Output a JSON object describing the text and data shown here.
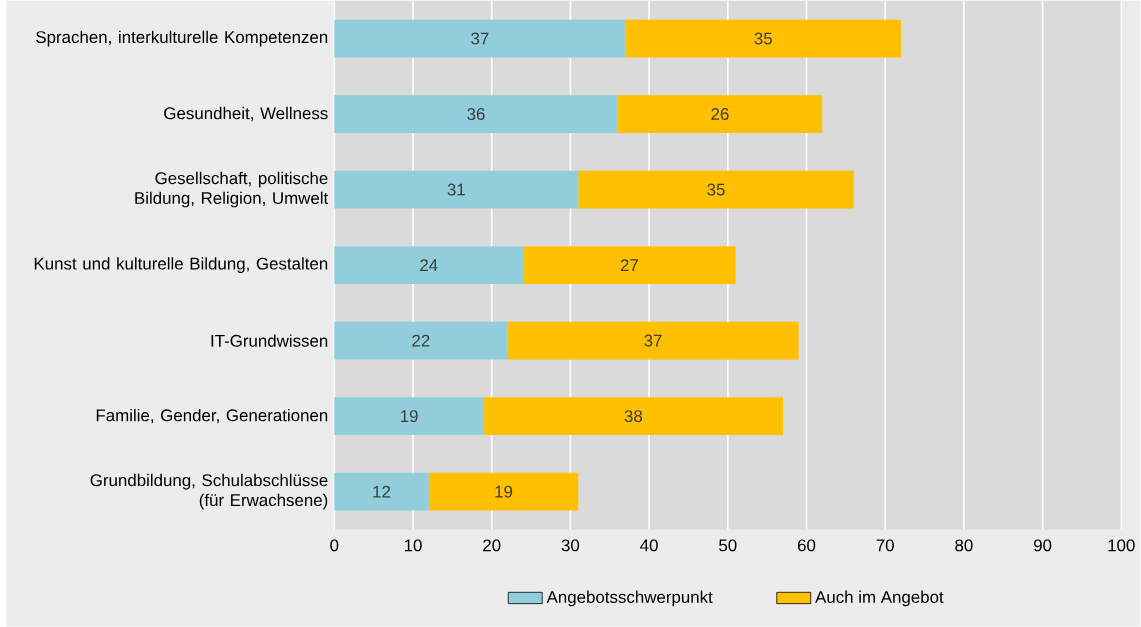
{
  "chart_data": {
    "type": "bar",
    "orientation": "horizontal",
    "stacked": true,
    "categories": [
      "Sprachen, interkulturelle Kompetenzen",
      "Gesundheit, Wellness",
      "Gesellschaft, politische Bildung, Religion, Umwelt",
      "Kunst und kulturelle Bildung, Gestalten",
      "IT-Grundwissen",
      "Familie, Gender, Generationen",
      "Grundbildung, Schulabschlüsse (für Erwachsene)"
    ],
    "series": [
      {
        "name": "Angebotsschwerpunkt",
        "color": "#92cddc",
        "values": [
          37,
          36,
          31,
          24,
          22,
          19,
          12
        ]
      },
      {
        "name": "Auch im Angebot",
        "color": "#fec000",
        "values": [
          35,
          26,
          35,
          27,
          37,
          38,
          19
        ]
      }
    ],
    "xlim": [
      0,
      100
    ],
    "xticks": [
      0,
      10,
      20,
      30,
      40,
      50,
      60,
      70,
      80,
      90,
      100
    ],
    "grid": "x",
    "legend": "bottom",
    "data_labels": true
  }
}
